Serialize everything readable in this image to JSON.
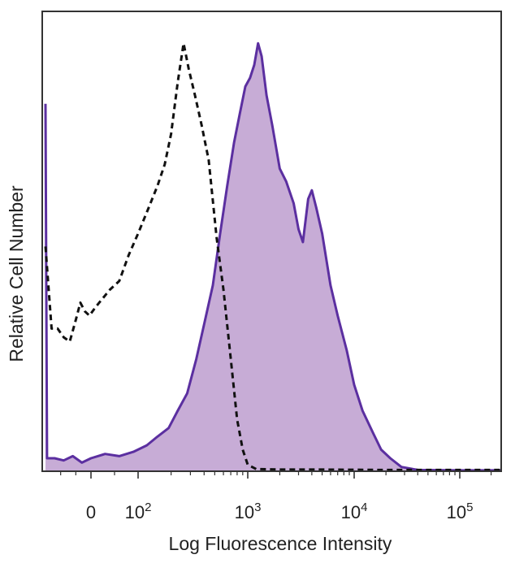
{
  "chart_data": {
    "type": "area",
    "xlabel": "Log Fluorescence Intensity",
    "ylabel": "Relative Cell Number",
    "x_scale": "logicle",
    "ylim": [
      0,
      1
    ],
    "x_ticks": [
      {
        "value": 0,
        "base": "0",
        "exp": ""
      },
      {
        "value": 100,
        "base": "10",
        "exp": "2"
      },
      {
        "value": 1000,
        "base": "10",
        "exp": "3"
      },
      {
        "value": 10000,
        "base": "10",
        "exp": "4"
      },
      {
        "value": 100000,
        "base": "10",
        "exp": "5"
      }
    ],
    "series": [
      {
        "style": "dashed",
        "color": "#111111",
        "points": [
          [
            -150,
            0.52
          ],
          [
            -130,
            0.33
          ],
          [
            -110,
            0.33
          ],
          [
            -90,
            0.31
          ],
          [
            -70,
            0.3
          ],
          [
            -50,
            0.35
          ],
          [
            -35,
            0.39
          ],
          [
            -20,
            0.37
          ],
          [
            -5,
            0.36
          ],
          [
            10,
            0.38
          ],
          [
            25,
            0.4
          ],
          [
            40,
            0.42
          ],
          [
            60,
            0.44
          ],
          [
            80,
            0.5
          ],
          [
            100,
            0.55
          ],
          [
            125,
            0.61
          ],
          [
            150,
            0.66
          ],
          [
            175,
            0.71
          ],
          [
            200,
            0.78
          ],
          [
            230,
            0.9
          ],
          [
            260,
            0.99
          ],
          [
            290,
            0.93
          ],
          [
            330,
            0.87
          ],
          [
            380,
            0.8
          ],
          [
            440,
            0.72
          ],
          [
            520,
            0.54
          ],
          [
            600,
            0.42
          ],
          [
            700,
            0.26
          ],
          [
            800,
            0.12
          ],
          [
            900,
            0.05
          ],
          [
            1000,
            0.015
          ],
          [
            1200,
            0.005
          ],
          [
            2000,
            0.004
          ],
          [
            5000,
            0.004
          ],
          [
            20000,
            0.003
          ],
          [
            100000,
            0.003
          ],
          [
            250000,
            0.003
          ]
        ]
      },
      {
        "style": "filled",
        "color": "#5b2fa0",
        "fill": "#c7acd6",
        "points": [
          [
            -150,
            0.85
          ],
          [
            -145,
            0.03
          ],
          [
            -120,
            0.03
          ],
          [
            -90,
            0.025
          ],
          [
            -60,
            0.035
          ],
          [
            -30,
            0.02
          ],
          [
            0,
            0.03
          ],
          [
            30,
            0.04
          ],
          [
            60,
            0.035
          ],
          [
            90,
            0.045
          ],
          [
            120,
            0.06
          ],
          [
            150,
            0.08
          ],
          [
            190,
            0.1
          ],
          [
            230,
            0.14
          ],
          [
            280,
            0.18
          ],
          [
            340,
            0.26
          ],
          [
            400,
            0.34
          ],
          [
            480,
            0.43
          ],
          [
            560,
            0.55
          ],
          [
            650,
            0.66
          ],
          [
            750,
            0.76
          ],
          [
            850,
            0.83
          ],
          [
            950,
            0.89
          ],
          [
            1050,
            0.91
          ],
          [
            1150,
            0.94
          ],
          [
            1250,
            0.99
          ],
          [
            1350,
            0.96
          ],
          [
            1500,
            0.87
          ],
          [
            1700,
            0.8
          ],
          [
            2000,
            0.7
          ],
          [
            2300,
            0.67
          ],
          [
            2700,
            0.62
          ],
          [
            3000,
            0.56
          ],
          [
            3300,
            0.53
          ],
          [
            3700,
            0.63
          ],
          [
            4000,
            0.65
          ],
          [
            4400,
            0.61
          ],
          [
            5000,
            0.55
          ],
          [
            6000,
            0.43
          ],
          [
            7000,
            0.36
          ],
          [
            8500,
            0.28
          ],
          [
            10000,
            0.2
          ],
          [
            12000,
            0.14
          ],
          [
            15000,
            0.09
          ],
          [
            18000,
            0.05
          ],
          [
            22000,
            0.03
          ],
          [
            28000,
            0.01
          ],
          [
            40000,
            0.003
          ],
          [
            100000,
            0.002
          ],
          [
            250000,
            0.002
          ]
        ]
      }
    ]
  }
}
